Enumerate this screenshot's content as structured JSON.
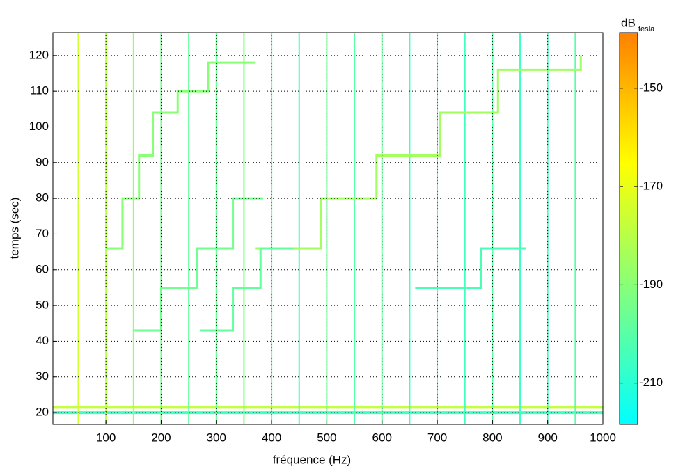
{
  "chart_data": {
    "type": "spectrogram",
    "xlabel": "fréquence (Hz)",
    "ylabel": "temps (sec)",
    "colorbar_label": "dB",
    "colorbar_label_sub": "tesla",
    "xlim": [
      4,
      1000
    ],
    "ylim": [
      16.7,
      126.4
    ],
    "xticks": [
      100,
      200,
      300,
      400,
      500,
      600,
      700,
      800,
      900,
      1000
    ],
    "yticks": [
      20,
      30,
      40,
      50,
      60,
      70,
      80,
      90,
      100,
      110,
      120
    ],
    "clim": [
      -218.4,
      -138.7
    ],
    "cticks": [
      -150,
      -170,
      -190,
      -210
    ],
    "colormap": [
      "#00ffff",
      "#40ffbf",
      "#80ff80",
      "#c0ff40",
      "#ffff00",
      "#ffc000",
      "#ff8000"
    ],
    "grid": true,
    "harmonics": {
      "x": [
        50,
        100,
        150,
        200,
        250,
        300,
        350,
        400,
        450,
        500,
        550,
        600,
        650,
        700,
        750,
        800,
        850,
        900,
        950
      ],
      "levels": [
        -175,
        -180,
        -188,
        -195,
        -198,
        -196,
        -192,
        -198,
        -205,
        -196,
        -200,
        -198,
        -205,
        -203,
        -205,
        -200,
        -205,
        -205,
        -200
      ]
    },
    "bands": {
      "y": [
        21.5,
        20
      ],
      "levels": [
        -178,
        -205
      ]
    },
    "tracks": [
      {
        "x": [
          370,
          490,
          490,
          590,
          590,
          705,
          705,
          810,
          810,
          960,
          960
        ],
        "y": [
          66,
          66,
          80,
          80,
          92,
          92,
          104,
          104,
          116,
          116,
          120
        ],
        "level": -185
      },
      {
        "x": [
          150,
          200,
          200,
          265,
          265,
          330,
          330,
          385
        ],
        "y": [
          43,
          43,
          55,
          55,
          66,
          66,
          80,
          80
        ],
        "level": -195
      },
      {
        "x": [
          270,
          330,
          330,
          380,
          380,
          440
        ],
        "y": [
          43,
          43,
          55,
          55,
          66,
          66
        ],
        "level": -198
      },
      {
        "x": [
          100,
          130,
          130,
          160,
          160,
          185,
          185,
          230,
          230,
          285,
          285,
          370
        ],
        "y": [
          66,
          66,
          80,
          80,
          92,
          92,
          104,
          104,
          110,
          110,
          118,
          118
        ],
        "level": -190
      },
      {
        "x": [
          660,
          780,
          780,
          860
        ],
        "y": [
          55,
          55,
          66,
          66
        ],
        "level": -203
      }
    ]
  }
}
